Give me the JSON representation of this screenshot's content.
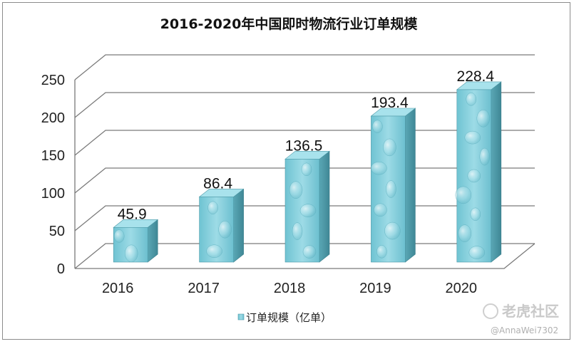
{
  "chart_data": {
    "type": "bar",
    "title": "2016-2020年中国即时物流行业订单规模",
    "categories": [
      "2016",
      "2017",
      "2018",
      "2019",
      "2020"
    ],
    "series": [
      {
        "name": "订单规模（亿单）",
        "values": [
          45.9,
          86.4,
          136.5,
          193.4,
          228.4
        ]
      }
    ],
    "data_labels": [
      "45.9",
      "86.4",
      "136.5",
      "193.4",
      "228.4"
    ],
    "ylim": [
      0,
      250
    ],
    "yticks": [
      0,
      50,
      100,
      150,
      200,
      250
    ],
    "xlabel": "",
    "ylabel": "",
    "grid": true,
    "legend_position": "bottom",
    "style": "3d",
    "colors": {
      "bar_front": "#7ecfdc",
      "bar_side": "#4e9aa8",
      "bar_top": "#a8e2ec",
      "grid": "#7a7a7a"
    }
  },
  "watermark": {
    "brand": "老虎社区",
    "handle": "@AnnaWei7302"
  }
}
